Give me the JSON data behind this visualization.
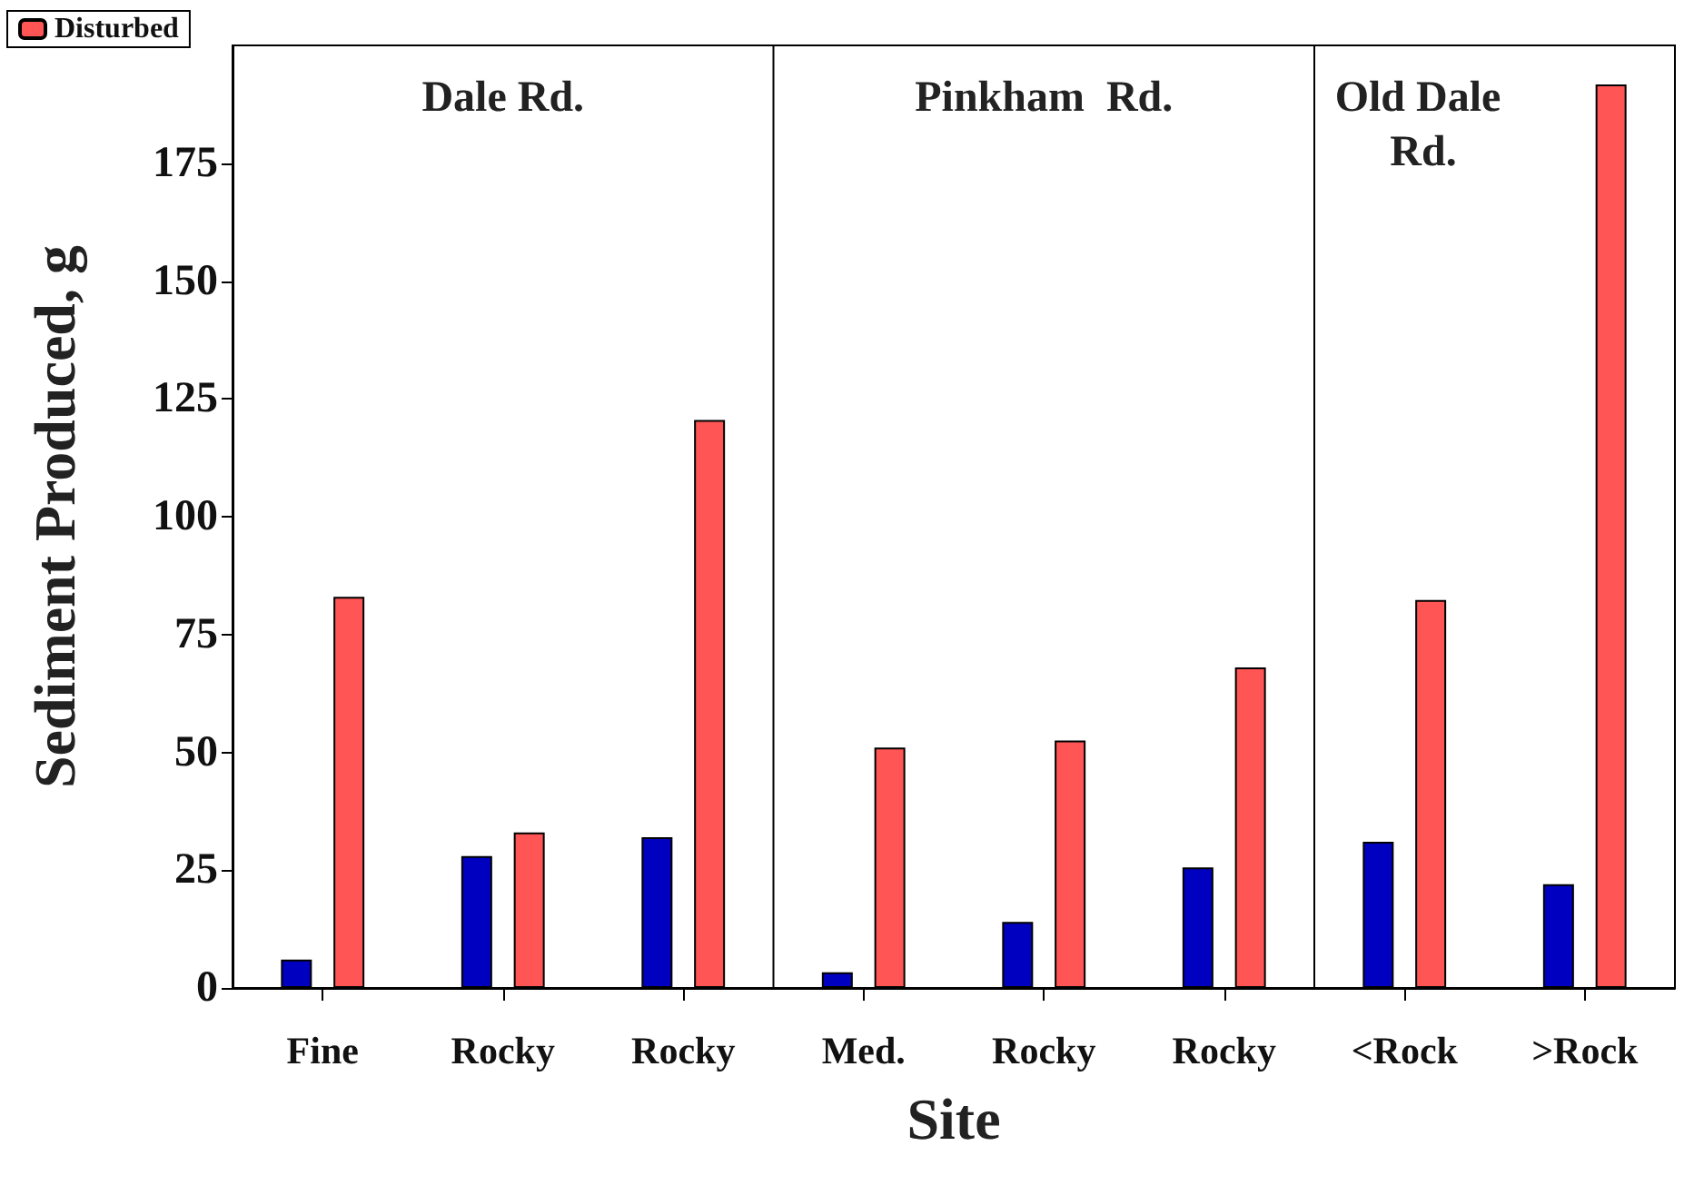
{
  "chart_data": {
    "type": "bar",
    "xlabel": "Site",
    "ylabel": "Sediment Produced, g",
    "categories": [
      "Fine",
      "Rocky",
      "Rocky",
      "Med.",
      "Rocky",
      "Rocky",
      "<Rock",
      ">Rock"
    ],
    "series": [
      {
        "color": "#0000c0",
        "values": [
          6,
          28,
          32,
          3.3,
          14,
          25.6,
          31,
          22
        ]
      },
      {
        "name": "Disturbed",
        "color": "#ff5555",
        "values": [
          83,
          33,
          120.5,
          51,
          52.5,
          68,
          82.3,
          191.7
        ]
      }
    ],
    "ylim": [
      0,
      200
    ],
    "yticks": [
      0,
      25,
      50,
      75,
      100,
      125,
      150,
      175
    ],
    "annotations": [
      "Dale Rd.",
      "Pinkham  Rd.",
      "Old Dale Rd."
    ],
    "grid": false,
    "legend": "top left"
  }
}
